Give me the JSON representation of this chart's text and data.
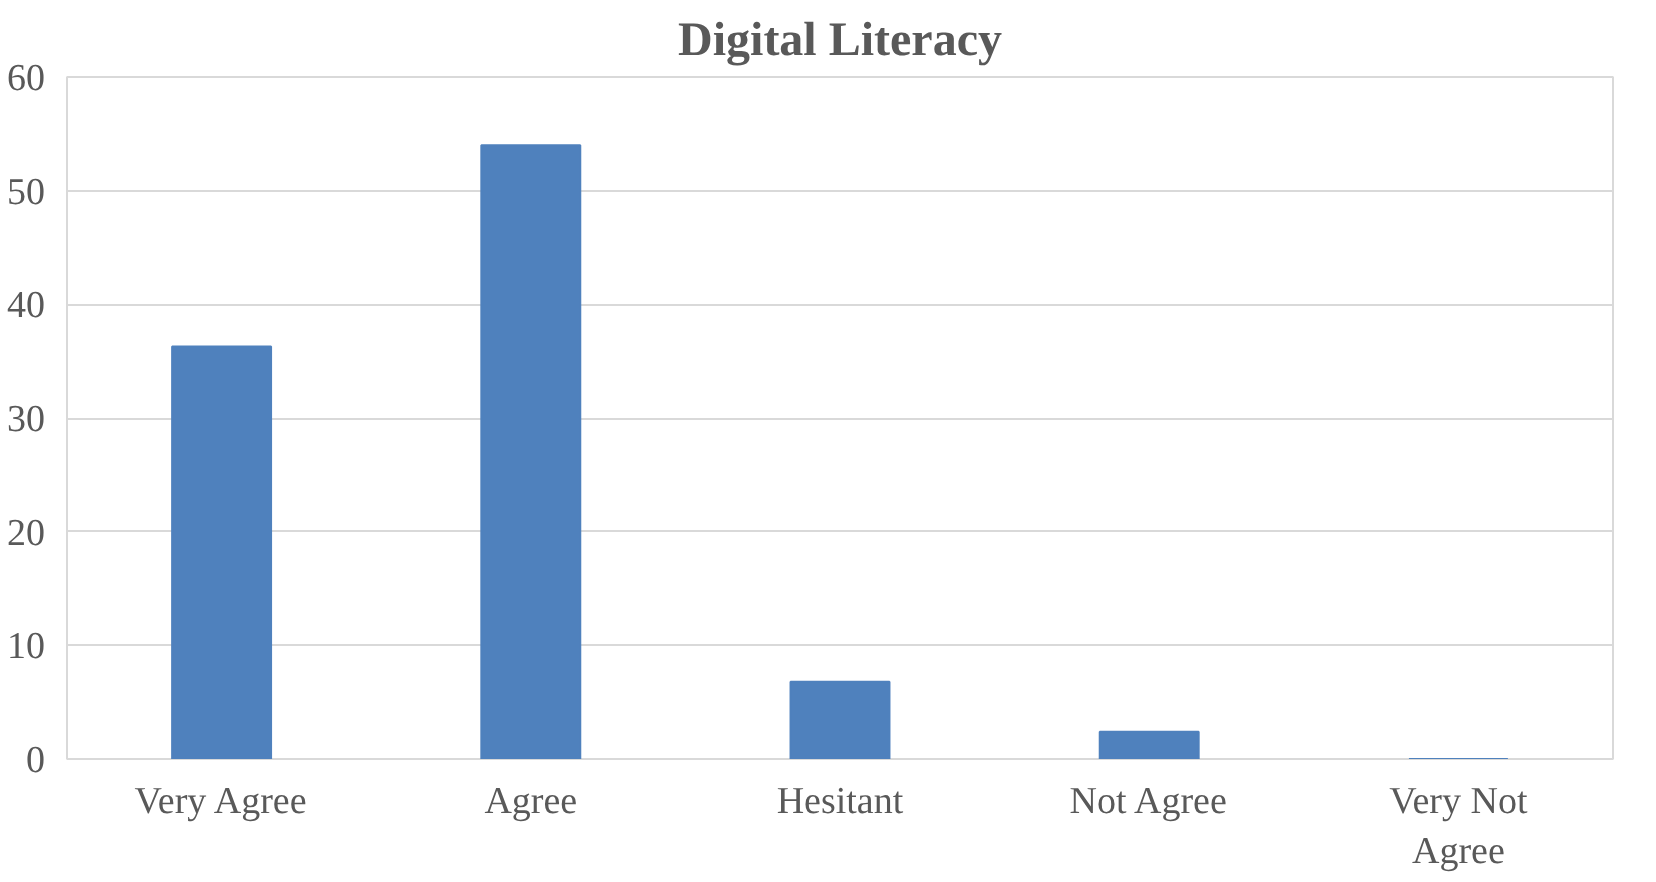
{
  "chart_data": {
    "type": "bar",
    "title": "Digital Literacy",
    "categories": [
      "Very Agree",
      "Agree",
      "Hesitant",
      "Not Agree",
      "Very Not Agree"
    ],
    "values": [
      36.3,
      54,
      6.8,
      2.4,
      0
    ],
    "color": "#4f81bd",
    "ylim": [
      0,
      60
    ],
    "yticks": [
      0,
      10,
      20,
      30,
      40,
      50,
      60
    ],
    "grid": "y"
  }
}
